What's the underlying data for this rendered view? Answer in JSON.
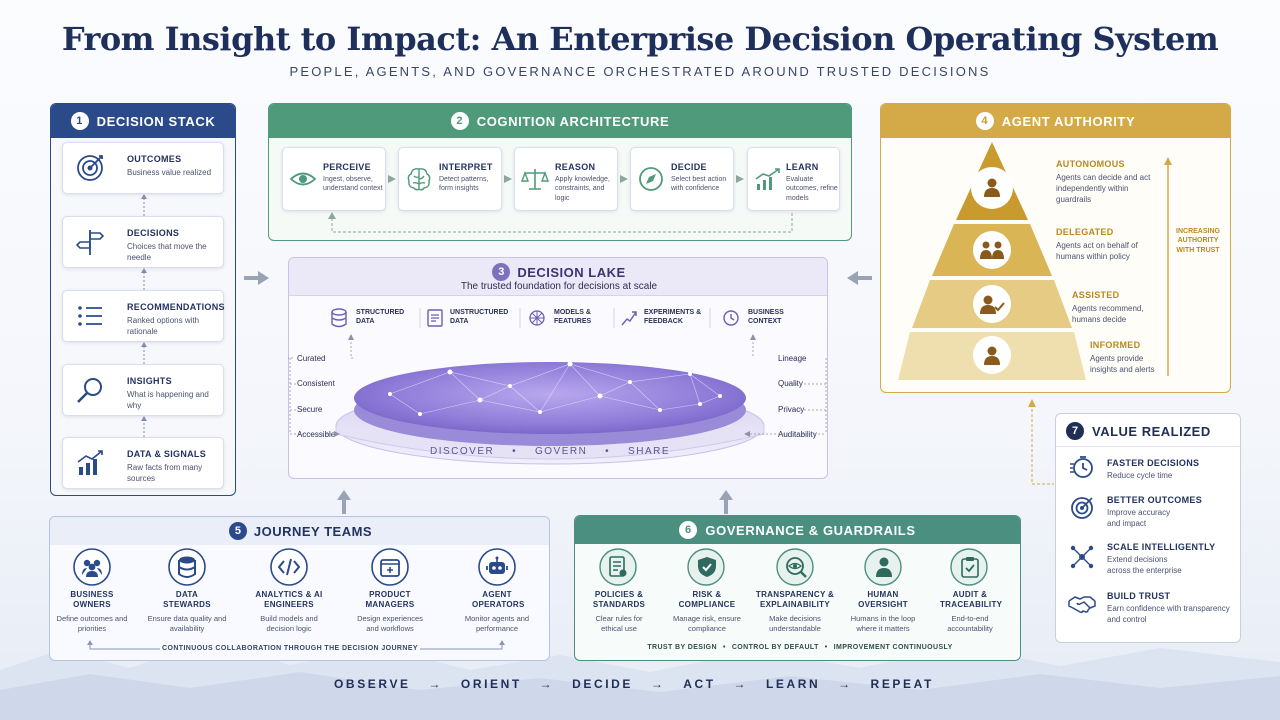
{
  "title": "From Insight to Impact: An Enterprise Decision Operating System",
  "subtitle": "PEOPLE, AGENTS, AND GOVERNANCE ORCHESTRATED AROUND TRUSTED DECISIONS",
  "decision_stack": {
    "num": "1",
    "title": "DECISION STACK",
    "items": [
      {
        "label": "OUTCOMES",
        "desc": "Business value realized",
        "icon": "target-icon"
      },
      {
        "label": "DECISIONS",
        "desc": "Choices that move the needle",
        "icon": "signpost-icon"
      },
      {
        "label": "RECOMMENDATIONS",
        "desc": "Ranked options with rationale",
        "icon": "list-icon"
      },
      {
        "label": "INSIGHTS",
        "desc": "What is happening and why",
        "icon": "magnifier-icon"
      },
      {
        "label": "DATA & SIGNALS",
        "desc": "Raw facts from many sources",
        "icon": "chart-icon"
      }
    ]
  },
  "cognition": {
    "num": "2",
    "title": "COGNITION ARCHITECTURE",
    "steps": [
      {
        "label": "PERCEIVE",
        "desc": "Ingest, observe, understand context",
        "icon": "eye-icon"
      },
      {
        "label": "INTERPRET",
        "desc": "Detect patterns, form insights",
        "icon": "brain-icon"
      },
      {
        "label": "REASON",
        "desc": "Apply knowledge, constraints, and logic",
        "icon": "scales-icon"
      },
      {
        "label": "DECIDE",
        "desc": "Select best action with confidence",
        "icon": "compass-icon"
      },
      {
        "label": "LEARN",
        "desc": "Evaluate outcomes, refine models",
        "icon": "growth-icon"
      }
    ]
  },
  "lake": {
    "num": "3",
    "title": "DECISION LAKE",
    "tagline": "The trusted foundation for decisions at scale",
    "sources": [
      {
        "label": "STRUCTURED DATA",
        "icon": "database-icon"
      },
      {
        "label": "UNSTRUCTURED DATA",
        "icon": "document-icon"
      },
      {
        "label": "MODELS & FEATURES",
        "icon": "network-icon"
      },
      {
        "label": "EXPERIMENTS & FEEDBACK",
        "icon": "trend-icon"
      },
      {
        "label": "BUSINESS CONTEXT",
        "icon": "clock-icon"
      }
    ],
    "left_props": [
      "Curated",
      "Consistent",
      "Secure",
      "Accessible"
    ],
    "right_props": [
      "Lineage",
      "Quality",
      "Privacy",
      "Auditability"
    ],
    "rim_words": [
      "DISCOVER",
      "GOVERN",
      "SHARE"
    ]
  },
  "authority": {
    "num": "4",
    "title": "AGENT AUTHORITY",
    "levels": [
      {
        "label": "AUTONOMOUS",
        "desc": "Agents can decide and act independently within guardrails"
      },
      {
        "label": "DELEGATED",
        "desc": "Agents act on behalf of humans within policy"
      },
      {
        "label": "ASSISTED",
        "desc": "Agents recommend, humans decide"
      },
      {
        "label": "INFORMED",
        "desc": "Agents provide insights and alerts"
      }
    ],
    "axis_label": "INCREASING AUTHORITY WITH TRUST"
  },
  "journey": {
    "num": "5",
    "title": "JOURNEY TEAMS",
    "teams": [
      {
        "label": "BUSINESS OWNERS",
        "desc": "Define outcomes and priorities",
        "icon": "people-icon"
      },
      {
        "label": "DATA STEWARDS",
        "desc": "Ensure data quality and availability",
        "icon": "database-icon"
      },
      {
        "label": "ANALYTICS & AI ENGINEERS",
        "desc": "Build models and decision logic",
        "icon": "code-icon"
      },
      {
        "label": "PRODUCT MANAGERS",
        "desc": "Design experiences and workflows",
        "icon": "box-icon"
      },
      {
        "label": "AGENT OPERATORS",
        "desc": "Monitor agents and performance",
        "icon": "robot-icon"
      }
    ],
    "footer": "CONTINUOUS COLLABORATION THROUGH THE DECISION JOURNEY"
  },
  "governance": {
    "num": "6",
    "title": "GOVERNANCE & GUARDRAILS",
    "items": [
      {
        "label": "POLICIES & STANDARDS",
        "desc": "Clear rules for ethical use",
        "icon": "policy-icon"
      },
      {
        "label": "RISK & COMPLIANCE",
        "desc": "Manage risk, ensure compliance",
        "icon": "shield-icon"
      },
      {
        "label": "TRANSPARENCY & EXPLAINABILITY",
        "desc": "Make decisions understandable",
        "icon": "eye-search-icon"
      },
      {
        "label": "HUMAN OVERSIGHT",
        "desc": "Humans in the loop where it matters",
        "icon": "person-icon"
      },
      {
        "label": "AUDIT & TRACEABILITY",
        "desc": "End-to-end accountability",
        "icon": "clipboard-icon"
      }
    ],
    "footer": [
      "TRUST BY DESIGN",
      "CONTROL BY DEFAULT",
      "IMPROVEMENT CONTINUOUSLY"
    ]
  },
  "value": {
    "num": "7",
    "title": "VALUE REALIZED",
    "items": [
      {
        "label": "FASTER DECISIONS",
        "desc": "Reduce cycle time",
        "icon": "stopwatch-icon"
      },
      {
        "label": "BETTER OUTCOMES",
        "desc": "Improve accuracy and impact",
        "icon": "target-icon"
      },
      {
        "label": "SCALE INTELLIGENTLY",
        "desc": "Extend decisions across the enterprise",
        "icon": "nodes-icon"
      },
      {
        "label": "BUILD TRUST",
        "desc": "Earn confidence with transparency and control",
        "icon": "handshake-icon"
      }
    ]
  },
  "loop": [
    "OBSERVE",
    "ORIENT",
    "DECIDE",
    "ACT",
    "LEARN",
    "REPEAT"
  ],
  "colors": {
    "navy": "#2b4a8a",
    "green": "#4e9a7b",
    "purple": "#8a7fc4",
    "gold": "#d3aa47",
    "teal": "#4b8f80"
  }
}
